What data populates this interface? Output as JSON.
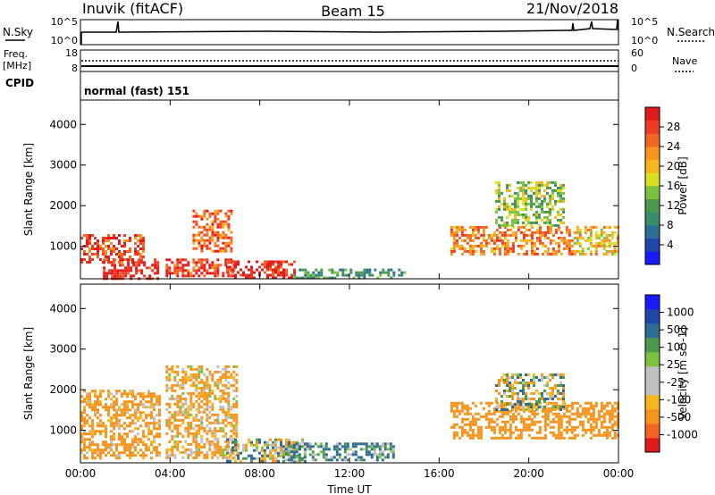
{
  "header": {
    "station": "Inuvik (fitACF)",
    "beam": "Beam 15",
    "date": "21/Nov/2018"
  },
  "strip_panels": {
    "nsky_label": "N.Sky",
    "nsearch_label": "N.Search",
    "noise_ticks": [
      "10^5",
      "10^0"
    ],
    "freq_label": "Freq.",
    "freq_unit": "[MHz]",
    "freq_ticks": [
      "18",
      "8"
    ],
    "nave_label": "Nave",
    "nave_ticks": [
      "60",
      "0"
    ],
    "cpid_label": "CPID",
    "cpid_value": "normal (fast) 151"
  },
  "colors": {
    "power_scale": [
      "#1a1aff",
      "#2045a8",
      "#2d6e92",
      "#3a8d6a",
      "#4c9b4c",
      "#7cc241",
      "#d9e021",
      "#f7b61b",
      "#f7941d",
      "#f26522",
      "#ee3b24",
      "#e31a1c"
    ],
    "velocity_scale": [
      "#e31a1c",
      "#f26522",
      "#f7941d",
      "#f7b61b",
      "#c0c0c0",
      "#c0c0c0",
      "#7cc241",
      "#4c9b4c",
      "#2d6e92",
      "#2045a8",
      "#1a1aff"
    ]
  },
  "chart_data": [
    {
      "type": "heatmap",
      "name": "power",
      "xlabel": "",
      "ylabel": "Slant Range [km]",
      "ylim": [
        200,
        4600
      ],
      "yticks": [
        1000,
        2000,
        3000,
        4000
      ],
      "x_range_hours": [
        0,
        24
      ],
      "colorbar": {
        "label": "Power [dB]",
        "ticks": [
          "4",
          "8",
          "12",
          "16",
          "20",
          "24",
          "28"
        ],
        "range": [
          0,
          30
        ]
      },
      "echo_regions": [
        {
          "t": [
            0.0,
            2.8
          ],
          "r": [
            600,
            1300
          ],
          "value": 26
        },
        {
          "t": [
            1.0,
            3.5
          ],
          "r": [
            200,
            700
          ],
          "value": 28
        },
        {
          "t": [
            3.8,
            6.8
          ],
          "r": [
            250,
            700
          ],
          "value": 27
        },
        {
          "t": [
            5.0,
            6.7
          ],
          "r": [
            900,
            1900
          ],
          "value": 24
        },
        {
          "t": [
            6.5,
            9.5
          ],
          "r": [
            250,
            650
          ],
          "value": 28
        },
        {
          "t": [
            9.5,
            14.5
          ],
          "r": [
            200,
            450
          ],
          "value": 10
        },
        {
          "t": [
            16.5,
            22.0
          ],
          "r": [
            800,
            1500
          ],
          "value": 22
        },
        {
          "t": [
            18.5,
            21.5
          ],
          "r": [
            1500,
            2600
          ],
          "value": 14
        },
        {
          "t": [
            22.0,
            24.0
          ],
          "r": [
            800,
            1500
          ],
          "value": 18
        }
      ]
    },
    {
      "type": "heatmap",
      "name": "velocity",
      "xlabel": "Time UT",
      "ylabel": "Slant Range [km]",
      "ylim": [
        200,
        4600
      ],
      "yticks": [
        1000,
        2000,
        3000,
        4000
      ],
      "xticks": [
        "00:00",
        "04:00",
        "08:00",
        "12:00",
        "16:00",
        "20:00",
        "00:00"
      ],
      "x_range_hours": [
        0,
        24
      ],
      "colorbar": {
        "label": "Velocity [m s^-1]",
        "ticks": [
          "-1000",
          "-500",
          "-100",
          "-25",
          "25",
          "100",
          "500",
          "1000"
        ]
      },
      "echo_regions": [
        {
          "t": [
            0.0,
            3.5
          ],
          "r": [
            300,
            2000
          ],
          "value": -200
        },
        {
          "t": [
            3.8,
            7.0
          ],
          "r": [
            300,
            2600
          ],
          "value": -150
        },
        {
          "t": [
            6.5,
            10.0
          ],
          "r": [
            250,
            800
          ],
          "value": 10
        },
        {
          "t": [
            9.0,
            14.0
          ],
          "r": [
            250,
            700
          ],
          "value": 150
        },
        {
          "t": [
            16.5,
            24.0
          ],
          "r": [
            800,
            1700
          ],
          "value": -300
        },
        {
          "t": [
            18.5,
            21.5
          ],
          "r": [
            1500,
            2400
          ],
          "value": 0
        }
      ]
    }
  ]
}
